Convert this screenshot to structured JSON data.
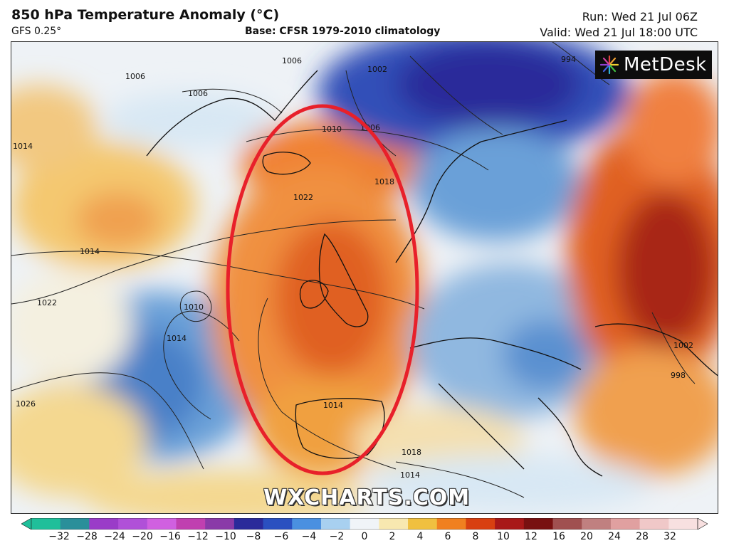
{
  "header": {
    "title": "850 hPa Temperature Anomaly (°C)",
    "model": "GFS 0.25°",
    "base": "Base: CFSR 1979-2010 climatology",
    "run": "Run: Wed 21 Jul 06Z",
    "valid": "Valid: Wed 21 Jul 18:00 UTC"
  },
  "logo": {
    "text": "MetDesk",
    "icon": "starburst-icon"
  },
  "watermark": "WXCHARTS.COM",
  "isobar_labels": [
    "1006",
    "1006",
    "1006",
    "1002",
    "994",
    "1014",
    "1010",
    "1006",
    "1018",
    "1022",
    "1014",
    "1022",
    "1010",
    "1014",
    "1026",
    "1014",
    "1018",
    "1014",
    "1002",
    "998"
  ],
  "annotation": {
    "shape": "ellipse",
    "color": "#e8202a"
  },
  "colorbar": {
    "ticks": [
      "−32",
      "−28",
      "−24",
      "−20",
      "−16",
      "−12",
      "−10",
      "−8",
      "−6",
      "−4",
      "−2",
      "0",
      "2",
      "4",
      "6",
      "8",
      "10",
      "12",
      "16",
      "20",
      "24",
      "28",
      "32"
    ],
    "colors": [
      "#1fbf9a",
      "#2a8f9a",
      "#9a3cc8",
      "#b050d8",
      "#d060e0",
      "#c040b0",
      "#8a3aa8",
      "#2a2a9a",
      "#2a50c0",
      "#4a90e0",
      "#a8d0f0",
      "#f0f4f8",
      "#f8e8b0",
      "#f0c040",
      "#f08020",
      "#d84010",
      "#a81818",
      "#781010",
      "#a05050",
      "#c08080",
      "#e0a0a0",
      "#f0c8c8",
      "#f8e0e0"
    ]
  }
}
